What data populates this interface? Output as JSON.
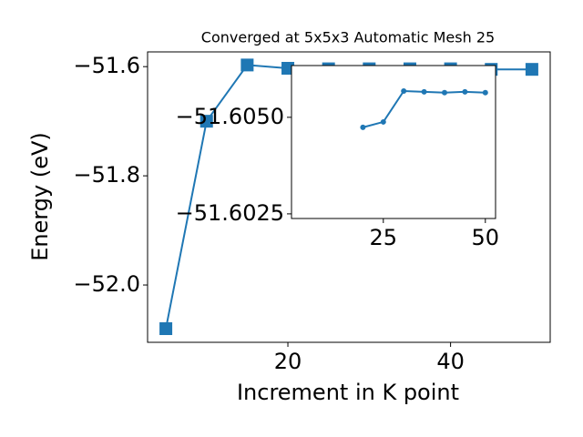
{
  "chart_data": [
    {
      "type": "line",
      "title": "Converged at 5x5x3 Automatic Mesh 25",
      "x_label": "Increment in K point",
      "y_label": "Energy (eV)",
      "x": [
        5,
        10,
        15,
        20,
        25,
        30,
        35,
        40,
        45,
        50
      ],
      "series": [
        {
          "color": "#1f77b4",
          "marker": "square",
          "values": [
            -52.08,
            -51.7,
            -51.597,
            -51.603,
            -51.604,
            -51.604,
            -51.604,
            -51.604,
            -51.605,
            -51.605
          ]
        }
      ],
      "xlim": [
        2.75,
        52.25
      ],
      "xticks": [
        20,
        40
      ],
      "ylim": [
        -52.105,
        -51.573
      ],
      "yticks": [
        {
          "value": -52.0,
          "label": "−52.0"
        },
        {
          "value": -51.8,
          "label": "−51.8"
        },
        {
          "value": -51.6,
          "label": "−51.6"
        }
      ]
    },
    {
      "type": "line",
      "x": [
        5,
        10,
        15,
        20,
        25,
        30,
        35,
        40,
        45,
        50
      ],
      "series": [
        {
          "color": "#1f77b4",
          "marker": "circle",
          "values": [
            null,
            null,
            null,
            -51.60474,
            -51.60488,
            -51.60568,
            -51.60566,
            -51.60564,
            -51.60566,
            -51.60564
          ]
        }
      ],
      "xlim": [
        2.5,
        52.5
      ],
      "xticks": [
        25,
        50
      ],
      "ylim": [
        -51.60238,
        -51.60634
      ],
      "yticks": [
        {
          "value": -51.605,
          "label": "−51.6050"
        },
        {
          "value": -51.6025,
          "label": "−51.6025"
        }
      ]
    }
  ]
}
